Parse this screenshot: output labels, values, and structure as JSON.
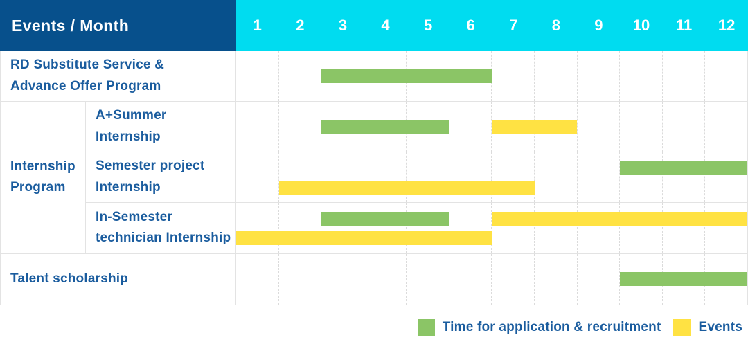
{
  "colors": {
    "header_bg": "#07508C",
    "months_bg": "#00DCF0",
    "label_text": "#1A5C9E",
    "application_green": "#8BC566",
    "event_yellow": "#FFE243",
    "header_text": "#FFFFFF",
    "grid_line": "#E3E3E3"
  },
  "header": {
    "label": "Events / Month",
    "months": [
      "1",
      "2",
      "3",
      "4",
      "5",
      "6",
      "7",
      "8",
      "9",
      "10",
      "11",
      "12"
    ]
  },
  "rows": [
    {
      "kind": "simple",
      "label_lines": [
        "RD Substitute Service &",
        "Advance Offer Program"
      ],
      "bar_lines": [
        [
          {
            "type": "application",
            "start_month": 3,
            "end_month": 6
          }
        ]
      ]
    },
    {
      "kind": "group",
      "group_label_lines": [
        "Internship",
        "Program"
      ],
      "children": [
        {
          "label_lines": [
            "A+Summer",
            "Internship"
          ],
          "bar_lines": [
            [
              {
                "type": "application",
                "start_month": 3,
                "end_month": 5
              },
              {
                "type": "event",
                "start_month": 7,
                "end_month": 8
              }
            ]
          ]
        },
        {
          "label_lines": [
            "Semester project",
            "Internship"
          ],
          "bar_lines": [
            [
              {
                "type": "application",
                "start_month": 10,
                "end_month": 12
              }
            ],
            [
              {
                "type": "event",
                "start_month": 2,
                "end_month": 7
              }
            ]
          ]
        },
        {
          "label_lines": [
            "In-Semester",
            "technician Internship"
          ],
          "bar_lines": [
            [
              {
                "type": "application",
                "start_month": 3,
                "end_month": 5
              },
              {
                "type": "event",
                "start_month": 7,
                "end_month": 12
              }
            ],
            [
              {
                "type": "event",
                "start_month": 1,
                "end_month": 6
              }
            ]
          ]
        }
      ]
    },
    {
      "kind": "simple",
      "label_lines": [
        "Talent scholarship"
      ],
      "bar_lines": [
        [
          {
            "type": "application",
            "start_month": 10,
            "end_month": 12
          }
        ]
      ]
    }
  ],
  "legend": [
    {
      "type": "application",
      "label": "Time for application & recruitment"
    },
    {
      "type": "event",
      "label": "Events"
    }
  ],
  "chart_data": {
    "type": "bar",
    "subtype": "gantt",
    "title": "Events / Month",
    "xlabel": "Month",
    "x_range": [
      1,
      12
    ],
    "x_ticks": [
      1,
      2,
      3,
      4,
      5,
      6,
      7,
      8,
      9,
      10,
      11,
      12
    ],
    "legend": [
      "Time for application & recruitment",
      "Events"
    ],
    "legend_position": "bottom-right",
    "grid": "vertical-dashed",
    "tasks": [
      {
        "row": "RD Substitute Service & Advance Offer Program",
        "group": null,
        "series": "Time for application & recruitment",
        "start": 3,
        "end": 6
      },
      {
        "row": "A+Summer Internship",
        "group": "Internship Program",
        "series": "Time for application & recruitment",
        "start": 3,
        "end": 5
      },
      {
        "row": "A+Summer Internship",
        "group": "Internship Program",
        "series": "Events",
        "start": 7,
        "end": 8
      },
      {
        "row": "Semester project Internship",
        "group": "Internship Program",
        "series": "Time for application & recruitment",
        "start": 10,
        "end": 12
      },
      {
        "row": "Semester project Internship",
        "group": "Internship Program",
        "series": "Events",
        "start": 2,
        "end": 7
      },
      {
        "row": "In-Semester technician Internship",
        "group": "Internship Program",
        "series": "Time for application & recruitment",
        "start": 3,
        "end": 5
      },
      {
        "row": "In-Semester technician Internship",
        "group": "Internship Program",
        "series": "Events",
        "start": 7,
        "end": 12
      },
      {
        "row": "In-Semester technician Internship",
        "group": "Internship Program",
        "series": "Events",
        "start": 1,
        "end": 6
      },
      {
        "row": "Talent scholarship",
        "group": null,
        "series": "Time for application & recruitment",
        "start": 10,
        "end": 12
      }
    ]
  }
}
